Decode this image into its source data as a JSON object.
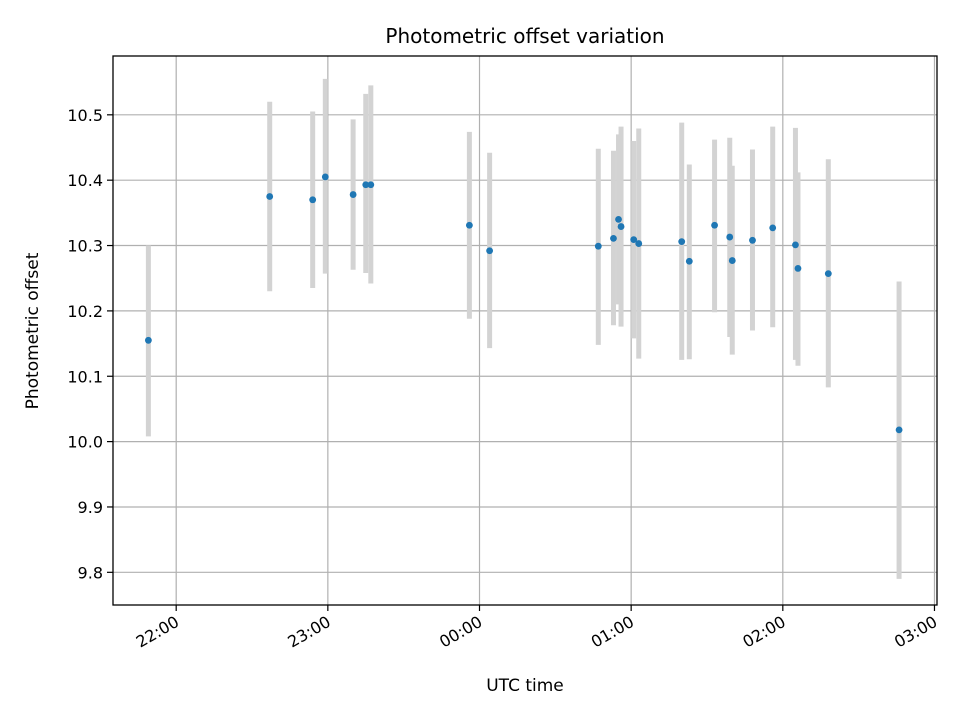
{
  "chart_data": {
    "type": "scatter",
    "title": "Photometric offset variation",
    "xlabel": "UTC time",
    "ylabel": "Photometric offset",
    "x_ticks": [
      "22:00",
      "23:00",
      "00:00",
      "01:00",
      "02:00",
      "03:00"
    ],
    "y_ticks": [
      "9.8",
      "9.9",
      "10.0",
      "10.1",
      "10.2",
      "10.3",
      "10.4",
      "10.5"
    ],
    "xlim": [
      "21:35",
      "03:01"
    ],
    "ylim": [
      9.75,
      10.59
    ],
    "grid": true,
    "colors": {
      "point": "#1f77b4",
      "errorbar": "#d3d3d3"
    },
    "points": [
      {
        "x": "21:49",
        "y": 10.155,
        "yerr_low": 10.008,
        "yerr_high": 10.3
      },
      {
        "x": "22:37",
        "y": 10.375,
        "yerr_low": 10.23,
        "yerr_high": 10.52
      },
      {
        "x": "22:54",
        "y": 10.37,
        "yerr_low": 10.235,
        "yerr_high": 10.505
      },
      {
        "x": "22:59",
        "y": 10.405,
        "yerr_low": 10.257,
        "yerr_high": 10.555
      },
      {
        "x": "23:10",
        "y": 10.378,
        "yerr_low": 10.263,
        "yerr_high": 10.493
      },
      {
        "x": "23:15",
        "y": 10.393,
        "yerr_low": 10.258,
        "yerr_high": 10.532
      },
      {
        "x": "23:17",
        "y": 10.393,
        "yerr_low": 10.242,
        "yerr_high": 10.545
      },
      {
        "x": "23:56",
        "y": 10.331,
        "yerr_low": 10.188,
        "yerr_high": 10.474
      },
      {
        "x": "00:04",
        "y": 10.292,
        "yerr_low": 10.143,
        "yerr_high": 10.442
      },
      {
        "x": "00:47",
        "y": 10.299,
        "yerr_low": 10.148,
        "yerr_high": 10.448
      },
      {
        "x": "00:53",
        "y": 10.311,
        "yerr_low": 10.178,
        "yerr_high": 10.445
      },
      {
        "x": "00:55",
        "y": 10.34,
        "yerr_low": 10.21,
        "yerr_high": 10.47
      },
      {
        "x": "00:56",
        "y": 10.329,
        "yerr_low": 10.176,
        "yerr_high": 10.482
      },
      {
        "x": "01:01",
        "y": 10.309,
        "yerr_low": 10.158,
        "yerr_high": 10.46
      },
      {
        "x": "01:03",
        "y": 10.303,
        "yerr_low": 10.127,
        "yerr_high": 10.479
      },
      {
        "x": "01:20",
        "y": 10.306,
        "yerr_low": 10.125,
        "yerr_high": 10.488
      },
      {
        "x": "01:23",
        "y": 10.276,
        "yerr_low": 10.126,
        "yerr_high": 10.424
      },
      {
        "x": "01:33",
        "y": 10.331,
        "yerr_low": 10.198,
        "yerr_high": 10.462
      },
      {
        "x": "01:39",
        "y": 10.313,
        "yerr_low": 10.16,
        "yerr_high": 10.465
      },
      {
        "x": "01:40",
        "y": 10.277,
        "yerr_low": 10.133,
        "yerr_high": 10.422
      },
      {
        "x": "01:48",
        "y": 10.308,
        "yerr_low": 10.17,
        "yerr_high": 10.447
      },
      {
        "x": "01:56",
        "y": 10.327,
        "yerr_low": 10.175,
        "yerr_high": 10.482
      },
      {
        "x": "02:05",
        "y": 10.301,
        "yerr_low": 10.125,
        "yerr_high": 10.48
      },
      {
        "x": "02:06",
        "y": 10.265,
        "yerr_low": 10.116,
        "yerr_high": 10.412
      },
      {
        "x": "02:18",
        "y": 10.257,
        "yerr_low": 10.083,
        "yerr_high": 10.432
      },
      {
        "x": "02:46",
        "y": 10.018,
        "yerr_low": 9.79,
        "yerr_high": 10.245
      }
    ]
  }
}
